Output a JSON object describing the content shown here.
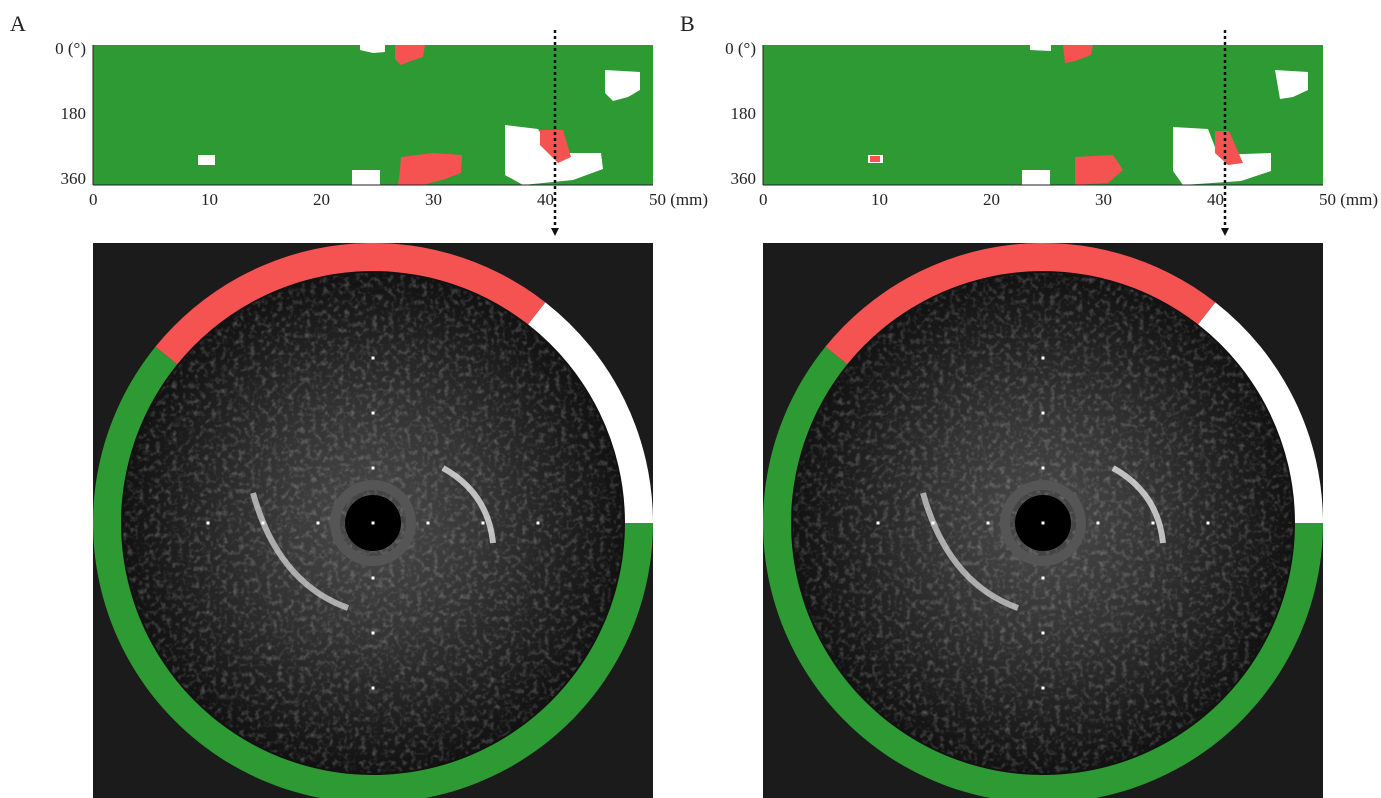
{
  "panels": [
    {
      "label": "A",
      "y_axis_labels": [
        "0 (°)",
        "180",
        "360"
      ],
      "x_axis_labels": [
        "0",
        "10",
        "20",
        "30",
        "40",
        "50 (mm)"
      ]
    },
    {
      "label": "B",
      "y_axis_labels": [
        "0 (°)",
        "180",
        "360"
      ],
      "x_axis_labels": [
        "0",
        "10",
        "20",
        "30",
        "40",
        "50 (mm)"
      ]
    }
  ]
}
